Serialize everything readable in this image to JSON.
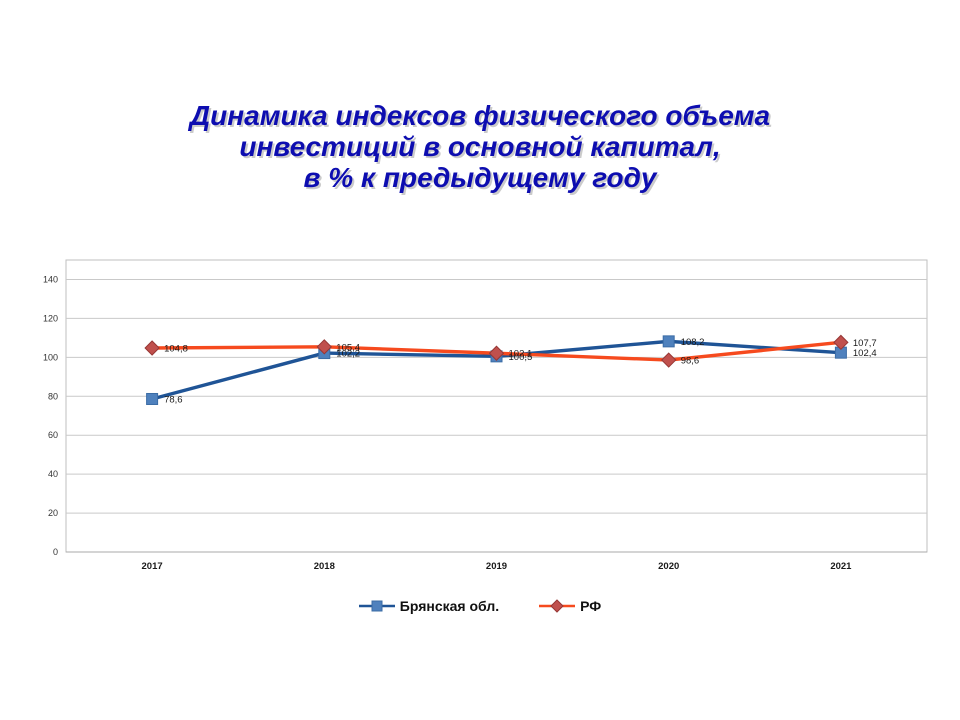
{
  "slide": {
    "title_lines": [
      "Динамика индексов физического объема",
      "инвестиций в основной капитал,",
      "в % к предыдущему году"
    ],
    "title_color": "#0D0DB0",
    "background_color": "#FFFFFF"
  },
  "chart_data": {
    "type": "line",
    "title": "",
    "categories": [
      "2017",
      "2018",
      "2019",
      "2020",
      "2021"
    ],
    "series": [
      {
        "name": "Брянская обл.",
        "values": [
          78.6,
          102.2,
          100.5,
          108.2,
          102.4
        ],
        "value_labels": [
          "78,6",
          "102,2",
          "100,5",
          "108,2",
          "102,4"
        ],
        "line_color": "#1F5496",
        "marker": "square",
        "marker_color": "#4F81BD"
      },
      {
        "name": "РФ",
        "values": [
          104.8,
          105.4,
          102.1,
          98.6,
          107.7
        ],
        "value_labels": [
          "104,8",
          "105,4",
          "102,1",
          "98,6",
          "107,7"
        ],
        "line_color": "#F64A1E",
        "marker": "diamond",
        "marker_color": "#C0504D"
      }
    ],
    "ylim": [
      0,
      150
    ],
    "yticks": [
      0,
      20,
      40,
      60,
      80,
      100,
      120,
      140
    ],
    "grid": true,
    "grid_color": "#C9C9C9",
    "axis_color": "#A8A8A8",
    "tick_label_color": "#333333",
    "data_label_color": "#1A1A1A",
    "legend_position": "bottom"
  }
}
